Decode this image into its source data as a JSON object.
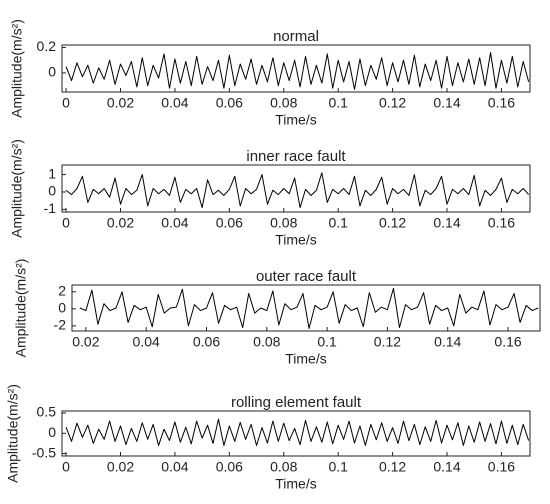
{
  "chart_data": [
    {
      "type": "line",
      "title": "normal",
      "xlabel": "Time/s",
      "ylabel": "Amplitude(m/s²)",
      "x": [
        0,
        0.002,
        0.004,
        0.006,
        0.008,
        0.01,
        0.012,
        0.014,
        0.016,
        0.018,
        0.02,
        0.022,
        0.024,
        0.026,
        0.028,
        0.03,
        0.032,
        0.034,
        0.036,
        0.038,
        0.04,
        0.042,
        0.044,
        0.046,
        0.048,
        0.05,
        0.052,
        0.054,
        0.056,
        0.058,
        0.06,
        0.062,
        0.064,
        0.066,
        0.068,
        0.07,
        0.072,
        0.074,
        0.076,
        0.078,
        0.08,
        0.082,
        0.084,
        0.086,
        0.088,
        0.09,
        0.092,
        0.094,
        0.096,
        0.098,
        0.1,
        0.102,
        0.104,
        0.106,
        0.108,
        0.11,
        0.112,
        0.114,
        0.116,
        0.118,
        0.12,
        0.122,
        0.124,
        0.126,
        0.128,
        0.13,
        0.132,
        0.134,
        0.136,
        0.138,
        0.14,
        0.142,
        0.144,
        0.146,
        0.148,
        0.15,
        0.152,
        0.154,
        0.156,
        0.158,
        0.16,
        0.162,
        0.164,
        0.166,
        0.168,
        0.17
      ],
      "series": [
        {
          "color": "#000000",
          "values": [
            0.05,
            -0.06,
            0.08,
            -0.03,
            0.06,
            -0.08,
            0.04,
            -0.05,
            0.1,
            -0.09,
            0.07,
            -0.02,
            0.09,
            -0.11,
            0.12,
            -0.1,
            0.06,
            -0.04,
            0.15,
            -0.12,
            0.11,
            -0.08,
            0.09,
            -0.1,
            0.13,
            -0.09,
            0.05,
            -0.06,
            0.1,
            -0.12,
            0.14,
            -0.1,
            0.07,
            -0.05,
            0.11,
            -0.09,
            0.06,
            -0.07,
            0.12,
            -0.1,
            0.08,
            -0.06,
            0.1,
            -0.11,
            0.13,
            -0.09,
            0.06,
            -0.08,
            0.15,
            -0.12,
            0.1,
            -0.07,
            0.09,
            -0.13,
            0.11,
            -0.1,
            0.06,
            -0.05,
            0.12,
            -0.1,
            0.08,
            -0.07,
            0.1,
            -0.09,
            0.14,
            -0.11,
            0.07,
            -0.06,
            0.1,
            -0.12,
            0.13,
            -0.1,
            0.08,
            -0.07,
            0.11,
            -0.09,
            0.12,
            -0.1,
            0.16,
            -0.12,
            0.1,
            -0.08,
            0.13,
            -0.11,
            0.09,
            -0.07
          ]
        }
      ],
      "xlim": [
        -0.0015,
        0.1705
      ],
      "xticks": [
        0,
        0.02,
        0.04,
        0.06,
        0.08,
        0.1,
        0.12,
        0.14,
        0.16
      ],
      "ylim": [
        -0.15,
        0.22
      ],
      "yticks": [
        0,
        0.2
      ]
    },
    {
      "type": "line",
      "title": "inner race fault",
      "xlabel": "Time/s",
      "ylabel": "Amplitude(m/s²)",
      "x": [
        0,
        0.002,
        0.004,
        0.006,
        0.008,
        0.01,
        0.012,
        0.014,
        0.016,
        0.018,
        0.02,
        0.022,
        0.024,
        0.026,
        0.028,
        0.03,
        0.032,
        0.034,
        0.036,
        0.038,
        0.04,
        0.042,
        0.044,
        0.046,
        0.048,
        0.05,
        0.052,
        0.054,
        0.056,
        0.058,
        0.06,
        0.062,
        0.064,
        0.066,
        0.068,
        0.07,
        0.072,
        0.074,
        0.076,
        0.078,
        0.08,
        0.082,
        0.084,
        0.086,
        0.088,
        0.09,
        0.092,
        0.094,
        0.096,
        0.098,
        0.1,
        0.102,
        0.104,
        0.106,
        0.108,
        0.11,
        0.112,
        0.114,
        0.116,
        0.118,
        0.12,
        0.122,
        0.124,
        0.126,
        0.128,
        0.13,
        0.132,
        0.134,
        0.136,
        0.138,
        0.14,
        0.142,
        0.144,
        0.146,
        0.148,
        0.15,
        0.152,
        0.154,
        0.156,
        0.158,
        0.16,
        0.162,
        0.164,
        0.166,
        0.168,
        0.17
      ],
      "series": [
        {
          "color": "#000000",
          "values": [
            0.1,
            -0.15,
            0.2,
            0.9,
            -0.6,
            0.15,
            -0.1,
            0.2,
            -0.3,
            0.8,
            -0.7,
            0.2,
            -0.15,
            0.1,
            1.0,
            -0.8,
            0.2,
            -0.1,
            0.15,
            -0.2,
            0.85,
            -0.6,
            0.15,
            -0.1,
            0.2,
            -0.9,
            0.7,
            -0.15,
            0.1,
            -0.2,
            0.15,
            0.9,
            -0.8,
            0.2,
            -0.1,
            0.15,
            1.0,
            -0.7,
            0.1,
            -0.15,
            0.2,
            -0.1,
            0.8,
            -0.9,
            0.15,
            -0.2,
            0.1,
            1.1,
            -0.6,
            0.15,
            -0.1,
            0.2,
            -0.15,
            0.9,
            -0.8,
            0.1,
            -0.2,
            0.15,
            0.85,
            -0.7,
            0.2,
            -0.1,
            0.15,
            -0.2,
            1.0,
            -0.8,
            0.1,
            -0.15,
            0.2,
            0.9,
            -0.7,
            0.15,
            -0.1,
            0.2,
            -0.15,
            0.95,
            -0.8,
            0.1,
            -0.2,
            0.15,
            0.8,
            -0.6,
            0.15,
            -0.1,
            0.2,
            -0.15
          ]
        }
      ],
      "xlim": [
        -0.0015,
        0.1705
      ],
      "xticks": [
        0,
        0.02,
        0.04,
        0.06,
        0.08,
        0.1,
        0.12,
        0.14,
        0.16
      ],
      "ylim": [
        -1.15,
        1.55
      ],
      "yticks": [
        -1,
        0,
        1
      ]
    },
    {
      "type": "line",
      "title": "outer race fault",
      "xlabel": "Time/s",
      "ylabel": "Amplitude(m/s²)",
      "x": [
        0.018,
        0.02,
        0.022,
        0.024,
        0.026,
        0.028,
        0.03,
        0.032,
        0.034,
        0.036,
        0.038,
        0.04,
        0.042,
        0.044,
        0.046,
        0.048,
        0.05,
        0.052,
        0.054,
        0.056,
        0.058,
        0.06,
        0.062,
        0.064,
        0.066,
        0.068,
        0.07,
        0.072,
        0.074,
        0.076,
        0.078,
        0.08,
        0.082,
        0.084,
        0.086,
        0.088,
        0.09,
        0.092,
        0.094,
        0.096,
        0.098,
        0.1,
        0.102,
        0.104,
        0.106,
        0.108,
        0.11,
        0.112,
        0.114,
        0.116,
        0.118,
        0.12,
        0.122,
        0.124,
        0.126,
        0.128,
        0.13,
        0.132,
        0.134,
        0.136,
        0.138,
        0.14,
        0.142,
        0.144,
        0.146,
        0.148,
        0.15,
        0.152,
        0.154,
        0.156,
        0.158,
        0.16,
        0.162,
        0.164,
        0.166,
        0.168,
        0.17
      ],
      "series": [
        {
          "color": "#000000",
          "values": [
            0.1,
            -0.2,
            2.2,
            -1.8,
            0.6,
            -0.2,
            0.1,
            2.0,
            -1.6,
            0.4,
            -0.1,
            0.2,
            -2.1,
            1.7,
            -0.5,
            0.1,
            0.2,
            2.3,
            -2.0,
            0.5,
            -0.2,
            0.1,
            1.9,
            -1.7,
            0.4,
            -0.1,
            0.2,
            -2.2,
            1.8,
            -0.5,
            0.1,
            -0.2,
            2.1,
            -1.9,
            0.6,
            -0.1,
            0.2,
            1.8,
            -2.3,
            0.4,
            -0.1,
            0.2,
            2.0,
            -1.7,
            0.5,
            -0.2,
            0.1,
            -2.1,
            1.9,
            -0.4,
            0.2,
            -0.1,
            2.4,
            -2.2,
            0.5,
            -0.1,
            0.2,
            1.9,
            -1.8,
            0.4,
            -0.2,
            0.1,
            -2.0,
            1.7,
            -0.5,
            0.2,
            -0.1,
            2.1,
            -1.9,
            0.5,
            -0.1,
            0.2,
            1.8,
            -1.6,
            0.4,
            -0.2,
            0.1
          ]
        }
      ],
      "xlim": [
        0.0154,
        0.1706
      ],
      "xticks": [
        0.02,
        0.04,
        0.06,
        0.08,
        0.1,
        0.12,
        0.14,
        0.16
      ],
      "ylim": [
        -2.6,
        2.8
      ],
      "yticks": [
        -2,
        0,
        2
      ]
    },
    {
      "type": "line",
      "title": "rolling element fault",
      "xlabel": "Time/s",
      "ylabel": "Amplitude(m/s²)",
      "x": [
        0,
        0.002,
        0.004,
        0.006,
        0.008,
        0.01,
        0.012,
        0.014,
        0.016,
        0.018,
        0.02,
        0.022,
        0.024,
        0.026,
        0.028,
        0.03,
        0.032,
        0.034,
        0.036,
        0.038,
        0.04,
        0.042,
        0.044,
        0.046,
        0.048,
        0.05,
        0.052,
        0.054,
        0.056,
        0.058,
        0.06,
        0.062,
        0.064,
        0.066,
        0.068,
        0.07,
        0.072,
        0.074,
        0.076,
        0.078,
        0.08,
        0.082,
        0.084,
        0.086,
        0.088,
        0.09,
        0.092,
        0.094,
        0.096,
        0.098,
        0.1,
        0.102,
        0.104,
        0.106,
        0.108,
        0.11,
        0.112,
        0.114,
        0.116,
        0.118,
        0.12,
        0.122,
        0.124,
        0.126,
        0.128,
        0.13,
        0.132,
        0.134,
        0.136,
        0.138,
        0.14,
        0.142,
        0.144,
        0.146,
        0.148,
        0.15,
        0.152,
        0.154,
        0.156,
        0.158,
        0.16,
        0.162,
        0.164,
        0.166,
        0.168,
        0.17
      ],
      "series": [
        {
          "color": "#000000",
          "values": [
            0.15,
            -0.2,
            0.25,
            -0.1,
            0.2,
            -0.25,
            0.1,
            -0.15,
            0.3,
            -0.2,
            0.18,
            -0.28,
            0.12,
            -0.2,
            0.26,
            -0.15,
            0.22,
            -0.3,
            0.1,
            -0.18,
            0.28,
            -0.22,
            0.15,
            -0.26,
            0.3,
            -0.12,
            0.2,
            -0.25,
            0.35,
            -0.3,
            0.18,
            -0.2,
            0.27,
            -0.15,
            0.22,
            -0.3,
            0.14,
            -0.24,
            0.3,
            -0.2,
            0.25,
            -0.18,
            0.12,
            -0.28,
            0.32,
            -0.2,
            0.16,
            -0.22,
            0.28,
            -0.26,
            0.2,
            -0.15,
            0.3,
            -0.24,
            0.18,
            -0.3,
            0.22,
            -0.16,
            0.26,
            -0.2,
            0.14,
            -0.25,
            0.3,
            -0.18,
            0.22,
            -0.28,
            0.16,
            -0.2,
            0.32,
            -0.24,
            0.2,
            -0.16,
            0.26,
            -0.3,
            0.18,
            -0.22,
            0.28,
            -0.2,
            0.24,
            -0.26,
            0.3,
            -0.25,
            0.2,
            -0.28,
            0.22,
            -0.18
          ]
        }
      ],
      "xlim": [
        -0.0015,
        0.1705
      ],
      "xticks": [
        0,
        0.02,
        0.04,
        0.06,
        0.08,
        0.1,
        0.12,
        0.14,
        0.16
      ],
      "ylim": [
        -0.56,
        0.55
      ],
      "yticks": [
        -0.5,
        0,
        0.5
      ]
    }
  ]
}
